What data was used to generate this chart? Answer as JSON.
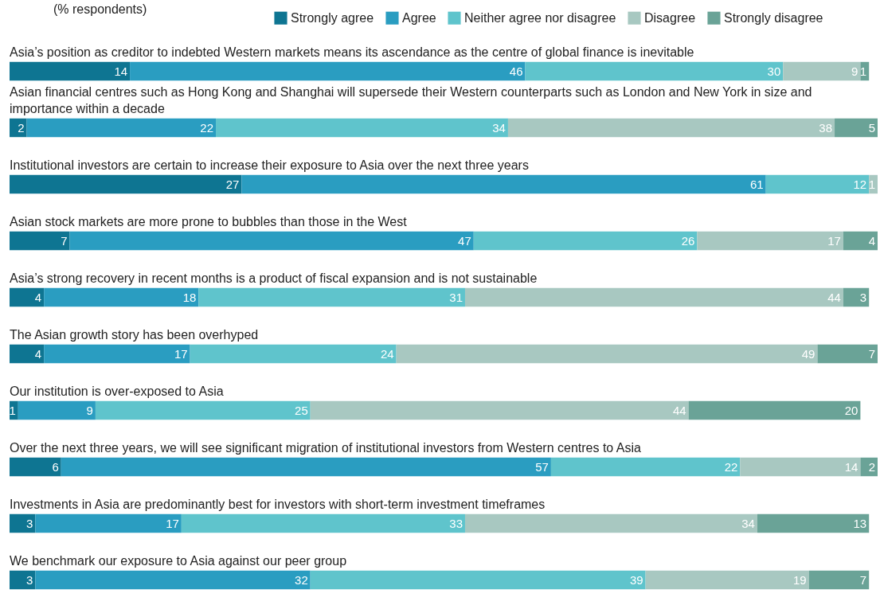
{
  "chart_data": {
    "type": "bar",
    "orientation": "horizontal",
    "stacked": true,
    "data_labels": true,
    "legend": "top right",
    "title": "(% respondents)",
    "categories": [
      "Asia’s position as creditor to indebted Western markets means its ascendance as the centre of global finance is inevitable",
      "Asian financial centres such as Hong Kong and Shanghai will supersede their Western counterparts such as London and New York in size and importance within a decade",
      "Institutional investors are certain to increase their exposure to Asia over the next three years",
      "Asian stock markets are more prone to bubbles than those in the West",
      "Asia’s strong recovery in recent months is a product of fiscal expansion and is not sustainable",
      "The Asian growth story has been overhyped",
      "Our institution is over-exposed to Asia",
      "Over the next three years, we will see significant migration of institutional investors from Western centres to Asia",
      "Investments in Asia are predominantly best for investors with short-term investment timeframes",
      "We benchmark our exposure to Asia against our peer group"
    ],
    "series": [
      {
        "name": "Strongly agree",
        "color": "#0e7592",
        "values": [
          14,
          2,
          27,
          7,
          4,
          4,
          1,
          6,
          3,
          3
        ]
      },
      {
        "name": "Agree",
        "color": "#2a9dc1",
        "values": [
          46,
          22,
          61,
          47,
          18,
          17,
          9,
          57,
          17,
          32
        ]
      },
      {
        "name": "Neither agree nor disagree",
        "color": "#5fc4cc",
        "values": [
          30,
          34,
          12,
          26,
          31,
          24,
          25,
          22,
          33,
          39
        ]
      },
      {
        "name": "Disagree",
        "color": "#a8c8c1",
        "values": [
          9,
          38,
          1,
          17,
          44,
          49,
          44,
          14,
          34,
          19
        ]
      },
      {
        "name": "Strongly disagree",
        "color": "#6aa397",
        "values": [
          1,
          5,
          null,
          4,
          3,
          7,
          20,
          2,
          13,
          7
        ]
      }
    ]
  }
}
